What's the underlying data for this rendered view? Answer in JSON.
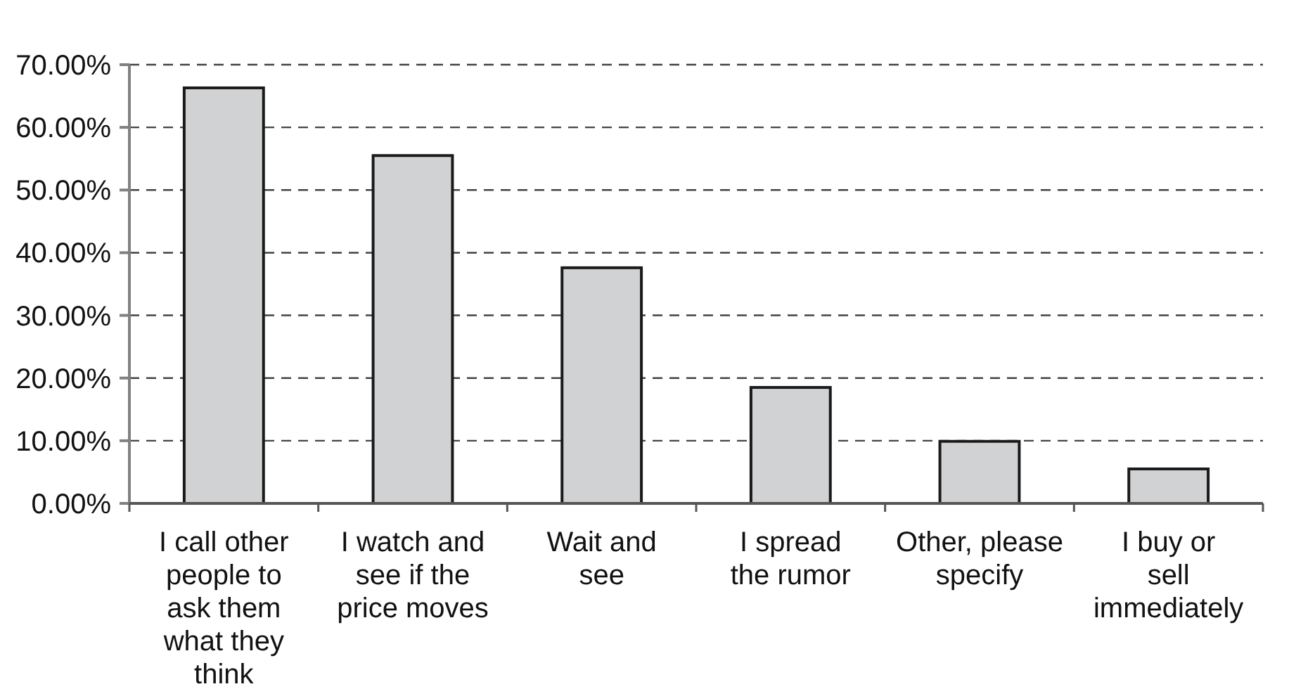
{
  "chart_data": {
    "type": "bar",
    "categories": [
      "I call other\npeople to\nask them\nwhat they\nthink",
      "I watch and\nsee if the\nprice moves",
      "Wait and\nsee",
      "I spread\nthe rumor",
      "Other, please\nspecify",
      "I buy or\nsell\nimmediately"
    ],
    "values": [
      66.3,
      55.5,
      37.6,
      18.5,
      9.9,
      5.5
    ],
    "color": "#d1d2d4",
    "ylim": [
      0,
      70
    ],
    "yticks": [
      {
        "value": 0,
        "label": "0.00%"
      },
      {
        "value": 10,
        "label": "10.00%"
      },
      {
        "value": 20,
        "label": "20.00%"
      },
      {
        "value": 30,
        "label": "30.00%"
      },
      {
        "value": 40,
        "label": "40.00%"
      },
      {
        "value": 50,
        "label": "50.00%"
      },
      {
        "value": 60,
        "label": "60.00%"
      },
      {
        "value": 70,
        "label": "70.00%"
      }
    ],
    "grid": "y"
  }
}
